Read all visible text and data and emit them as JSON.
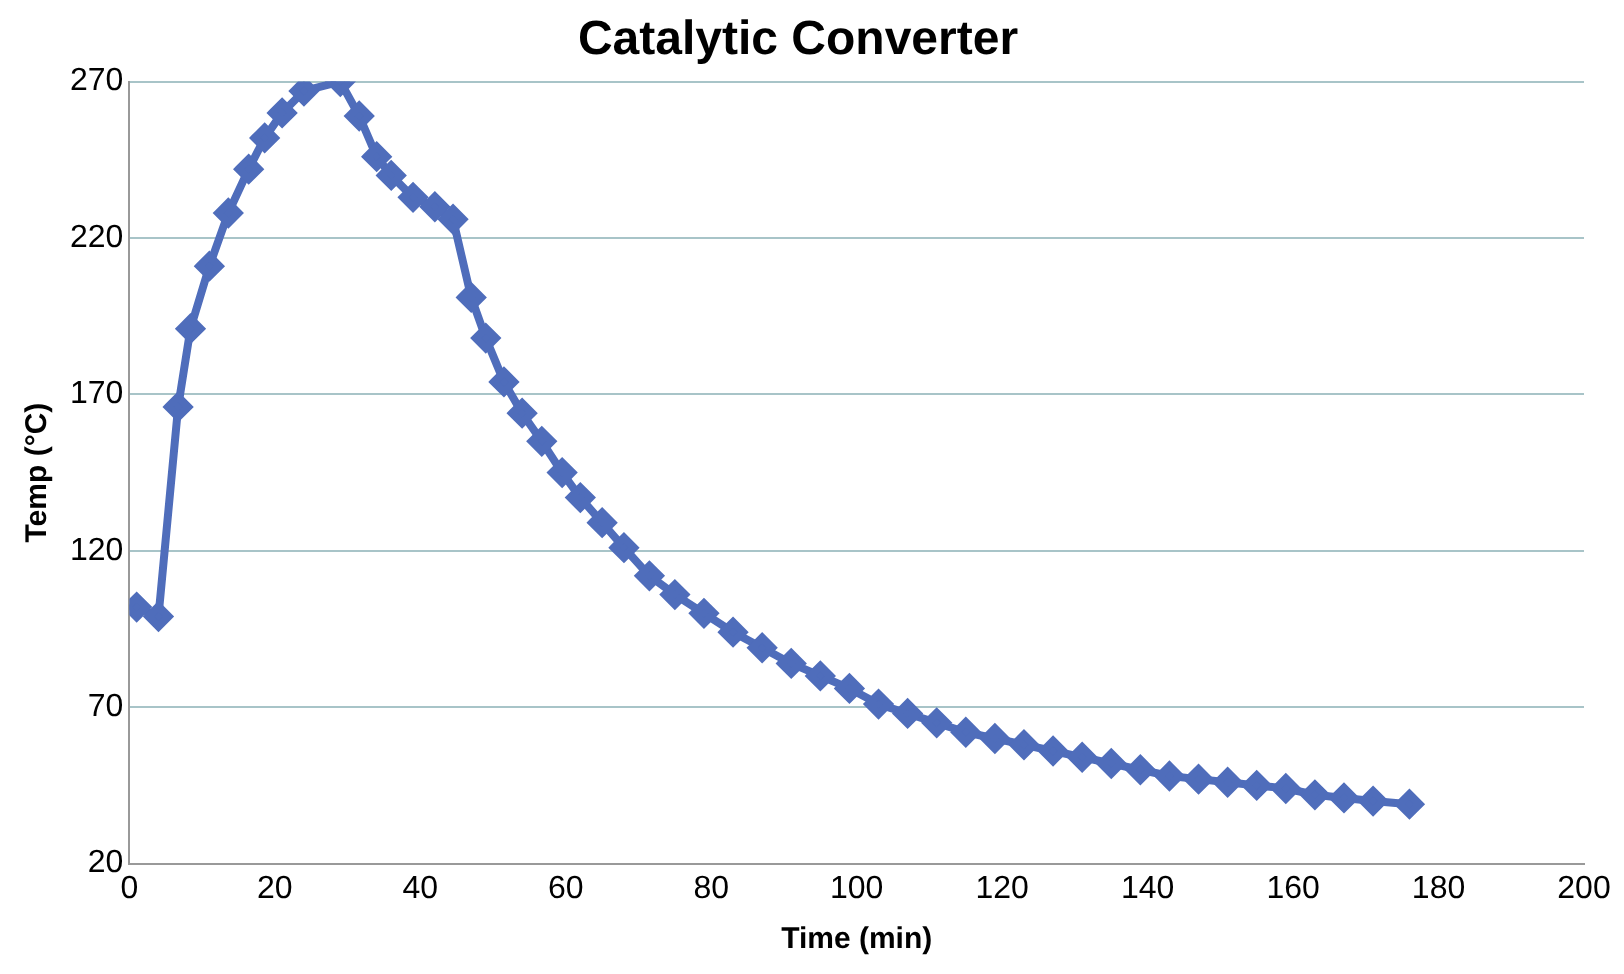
{
  "chart_data": {
    "type": "line",
    "title": "Catalytic Converter",
    "xlabel": "Time (min)",
    "ylabel": "Temp (°C)",
    "series": [
      {
        "color": "#4f6dbb",
        "x": [
          1,
          4,
          6.7,
          8.4,
          11,
          13.6,
          16.4,
          18.6,
          21,
          24,
          29,
          31.6,
          34,
          36,
          39,
          42,
          44.5,
          47,
          49,
          51.5,
          54,
          56.7,
          59.5,
          62,
          65,
          68,
          71.5,
          75,
          79,
          83,
          87,
          91,
          95,
          99,
          103,
          107,
          111,
          115,
          119,
          123,
          127,
          131,
          135,
          139,
          143,
          147,
          151,
          155,
          159,
          163,
          167,
          171,
          176
        ],
        "values": [
          102,
          99,
          166,
          191,
          211,
          228,
          242,
          252,
          260,
          267,
          270,
          259,
          246,
          240,
          233,
          230,
          226,
          201,
          188,
          174,
          164,
          155,
          145,
          137,
          129,
          121,
          112,
          106,
          100,
          94,
          89,
          84,
          80,
          76,
          71,
          68,
          65,
          62,
          60,
          58,
          56,
          54,
          52,
          50,
          48,
          47,
          46,
          45,
          44,
          42,
          41,
          40,
          39
        ]
      }
    ],
    "xlim": [
      0,
      200
    ],
    "xticks": [
      0,
      20,
      40,
      60,
      80,
      100,
      120,
      140,
      160,
      180,
      200
    ],
    "ylim": [
      20,
      270
    ],
    "yticks": [
      20,
      70,
      120,
      170,
      220,
      270
    ],
    "grid": "y",
    "legend": false,
    "marker": "diamond",
    "line_style": "solid"
  }
}
